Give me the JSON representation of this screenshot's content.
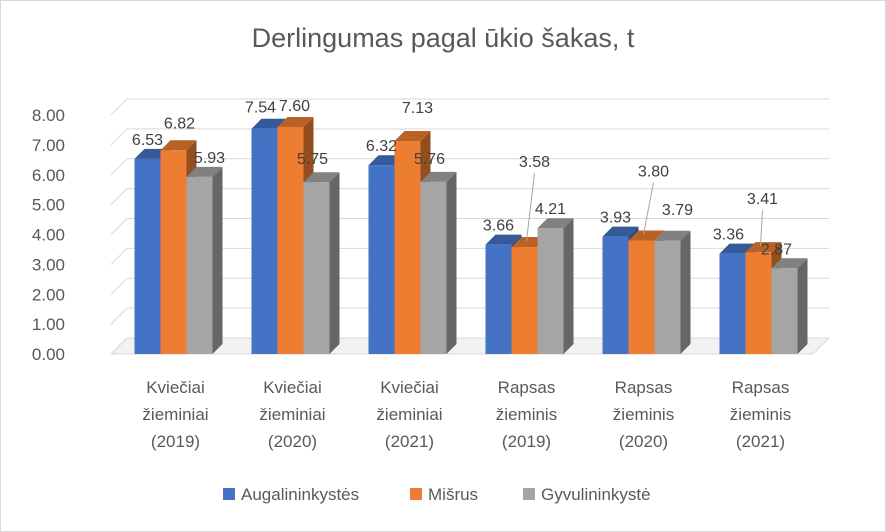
{
  "chart_data": {
    "type": "bar",
    "title": "Derlingumas pagal ūkio šakas, t",
    "categories": [
      [
        "Kviečiai",
        "žieminiai",
        "(2019)"
      ],
      [
        "Kviečiai",
        "žieminiai",
        "(2020)"
      ],
      [
        "Kviečiai",
        "žieminiai",
        "(2021)"
      ],
      [
        "Rapsas",
        "žieminis",
        "(2019)"
      ],
      [
        "Rapsas",
        "žieminis",
        "(2020)"
      ],
      [
        "Rapsas",
        "žieminis",
        "(2021)"
      ]
    ],
    "series": [
      {
        "name": "Augalininkystės",
        "color": "#4472c4",
        "values": [
          6.53,
          7.54,
          6.32,
          3.66,
          3.93,
          3.36
        ]
      },
      {
        "name": "Mišrus",
        "color": "#ed7d31",
        "values": [
          6.82,
          7.6,
          7.13,
          3.58,
          3.8,
          3.41
        ]
      },
      {
        "name": "Gyvulininkystė",
        "color": "#a5a5a5",
        "values": [
          5.93,
          5.75,
          5.76,
          4.21,
          3.79,
          2.87
        ]
      }
    ],
    "value_labels": [
      [
        "6.53",
        "6.82",
        "5.93"
      ],
      [
        "7.54",
        "7.60",
        "5.75"
      ],
      [
        "6.32",
        "7.13",
        "5.76"
      ],
      [
        "3.66",
        "3.58",
        "4.21"
      ],
      [
        "3.93",
        "3.80",
        "3.79"
      ],
      [
        "3.36",
        "3.41",
        "2.87"
      ]
    ],
    "y_ticks": [
      "0.00",
      "1.00",
      "2.00",
      "3.00",
      "4.00",
      "5.00",
      "6.00",
      "7.00",
      "8.00"
    ],
    "ylim": [
      0,
      8
    ],
    "grid": true,
    "legend_position": "bottom",
    "style": "3d-clustered-column"
  }
}
